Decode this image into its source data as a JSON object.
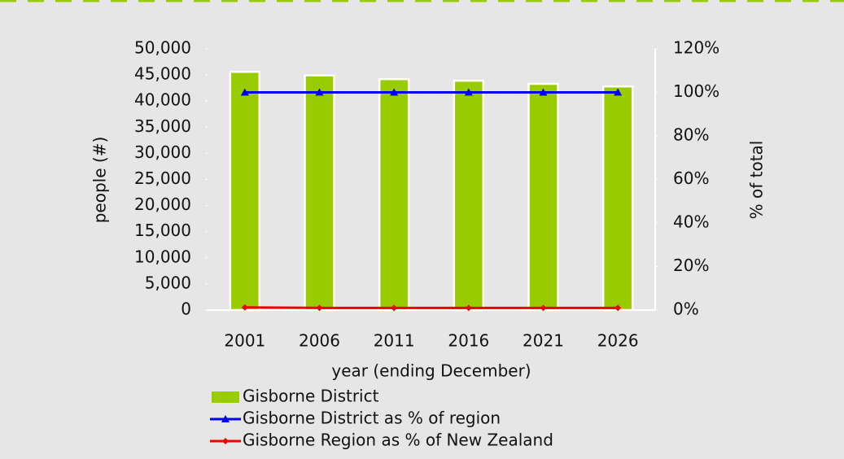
{
  "chart_data": {
    "type": "bar",
    "xlabel": "year (ending December)",
    "ylabel": "people (#)",
    "y2label": "% of total",
    "categories": [
      "2001",
      "2006",
      "2011",
      "2016",
      "2021",
      "2026"
    ],
    "series": [
      {
        "name": "Gisborne District",
        "color": "#99cc00",
        "values": [
          45600,
          44900,
          44200,
          43900,
          43300,
          42800
        ]
      },
      {
        "name": "Gisborne District as % of region",
        "color": "#0000ee",
        "axis": "y2",
        "type": "line",
        "values": [
          100,
          100,
          100,
          100,
          100,
          100
        ]
      },
      {
        "name": "Gisborne Region  as % of New Zealand",
        "color": "#ee0000",
        "axis": "y2",
        "type": "line",
        "values": [
          1.2,
          1.0,
          1.0,
          1.0,
          1.0,
          1.0
        ]
      }
    ],
    "ylim": [
      0,
      50000
    ],
    "yticks": [
      0,
      {
        "value": 5000,
        "label": "5,000"
      },
      {
        "value": 10000,
        "label": "10,000"
      },
      {
        "value": 15000,
        "label": "15,000"
      },
      {
        "value": 20000,
        "label": "20,000"
      },
      {
        "value": 25000,
        "label": "25,000"
      },
      {
        "value": 30000,
        "label": "30,000"
      },
      {
        "value": 35000,
        "label": "35,000"
      },
      {
        "value": 40000,
        "label": "40,000"
      },
      {
        "value": 45000,
        "label": "45,000"
      },
      {
        "value": 50000,
        "label": "50,000"
      }
    ],
    "y2lim": [
      0,
      120
    ],
    "y2ticks": [
      {
        "value": 0,
        "label": "0%"
      },
      {
        "value": 20,
        "label": "20%"
      },
      {
        "value": 40,
        "label": "40%"
      },
      {
        "value": 60,
        "label": "60%"
      },
      {
        "value": 80,
        "label": "80%"
      },
      {
        "value": 100,
        "label": "100%"
      },
      {
        "value": 120,
        "label": "120%"
      }
    ],
    "legend": "bottom-left"
  }
}
